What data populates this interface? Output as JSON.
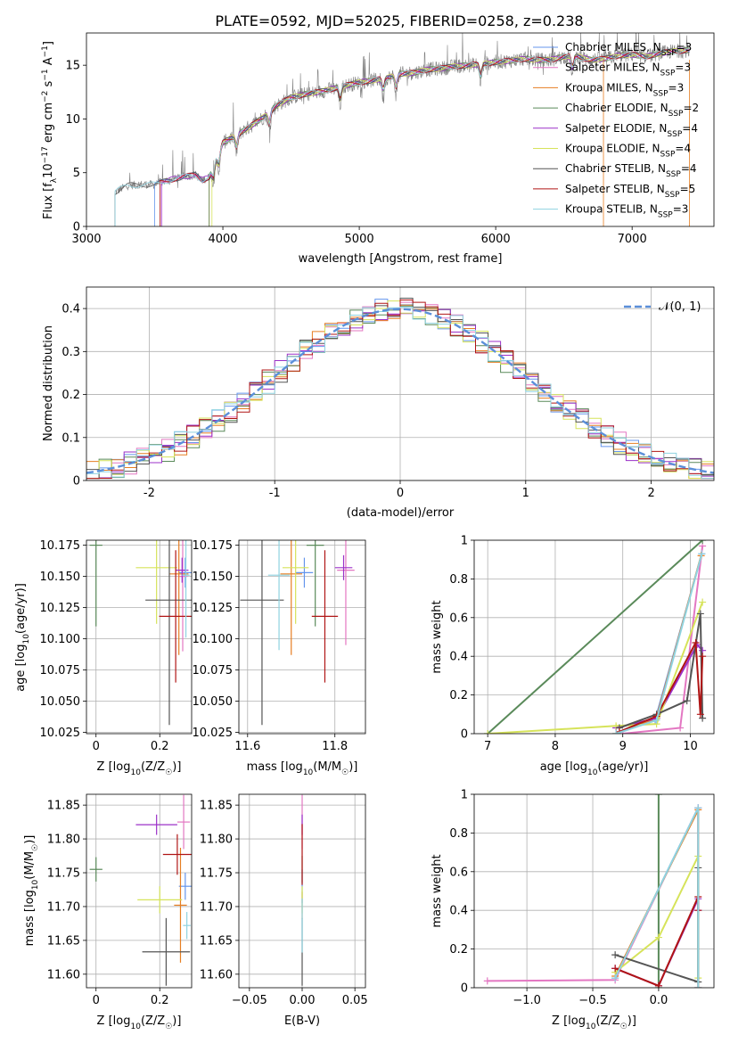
{
  "figure": {
    "title": "PLATE=0592, MJD=52025, FIBERID=0258, z=0.238"
  },
  "series_styles": [
    {
      "name": "Chabrier MILES",
      "nssp": "3",
      "color": "#6495ed"
    },
    {
      "name": "Salpeter MILES",
      "nssp": "3",
      "color": "#e377c2"
    },
    {
      "name": "Kroupa MILES",
      "nssp": "3",
      "color": "#e67e22"
    },
    {
      "name": "Chabrier ELODIE",
      "nssp": "2",
      "color": "#5a8a5a"
    },
    {
      "name": "Salpeter ELODIE",
      "nssp": "4",
      "color": "#9b30c8"
    },
    {
      "name": "Kroupa ELODIE",
      "nssp": "4",
      "color": "#d6e35a"
    },
    {
      "name": "Chabrier STELIB",
      "nssp": "4",
      "color": "#555555"
    },
    {
      "name": "Salpeter STELIB",
      "nssp": "5",
      "color": "#b01515"
    },
    {
      "name": "Kroupa STELIB",
      "nssp": "3",
      "color": "#8fd3e0"
    }
  ],
  "chart_data": [
    {
      "id": "spectrum",
      "type": "line",
      "xlabel": "wavelength [Angstrom, rest frame]",
      "ylabel": "Flux [f",
      "ylabel_sub": "λ",
      "ylabel_rest": "10",
      "ylabel_exp": "−17",
      "ylabel_units": " erg cm",
      "ylabel_units_exp": "−2",
      "ylabel_units2": " s",
      "ylabel_units2_exp": "−1",
      "ylabel_units3": " A",
      "ylabel_units3_exp": "−1",
      "ylabel_end": "]",
      "xlim": [
        3000,
        7600
      ],
      "ylim": [
        0,
        18
      ],
      "xticks": [
        3000,
        4000,
        5000,
        6000,
        7000
      ],
      "yticks": [
        0,
        5,
        10,
        15
      ],
      "grid": false,
      "legend": "top-right",
      "data_color": "#808080",
      "data_start": 3210,
      "data_end": 7420,
      "envelope": {
        "x": [
          3210,
          3300,
          3400,
          3500,
          3600,
          3700,
          3800,
          3850,
          3900,
          3950,
          4000,
          4100,
          4200,
          4300,
          4400,
          4500,
          4600,
          4700,
          4800,
          4900,
          5000,
          5100,
          5200,
          5300,
          5400,
          5500,
          5600,
          5700,
          5800,
          5900,
          6000,
          6100,
          6200,
          6300,
          6400,
          6500,
          6600,
          6700,
          6800,
          6900,
          7000,
          7100,
          7200,
          7300,
          7420
        ],
        "y": [
          3.2,
          3.8,
          3.9,
          3.9,
          4.3,
          4.6,
          4.8,
          4.3,
          4.6,
          6.2,
          7.8,
          8.5,
          9.3,
          10.2,
          11.3,
          12.0,
          12.3,
          12.5,
          12.8,
          13.1,
          13.4,
          13.6,
          13.8,
          14.2,
          14.3,
          14.6,
          14.7,
          14.9,
          15.0,
          15.1,
          15.3,
          15.4,
          15.6,
          15.5,
          15.5,
          15.8,
          15.8,
          15.5,
          15.6,
          15.9,
          16.0,
          15.8,
          16.1,
          16.3,
          16.4
        ]
      },
      "model_starts": [
        3500,
        3550,
        3900,
        3900,
        3550,
        3920,
        3210,
        3540,
        3210
      ],
      "dips": [
        3930,
        3970,
        4100,
        4340,
        4860,
        5175,
        5270,
        5890,
        6563
      ]
    },
    {
      "id": "residual_hist",
      "type": "histogram",
      "xlabel": "(data-model)/error",
      "ylabel": "Normed distribution",
      "xlim": [
        -2.5,
        2.5
      ],
      "ylim": [
        0,
        0.45
      ],
      "xticks": [
        -2,
        -1,
        0,
        1,
        2
      ],
      "yticks": [
        0.0,
        0.1,
        0.2,
        0.3,
        0.4
      ],
      "grid": true,
      "legend": "top-right",
      "gaussian_label_pre": "𝒩",
      "gaussian_label": "(0, 1)",
      "gaussian_color": "#5b8fd9",
      "bin_width": 0.1,
      "bin_start": -2.5
    },
    {
      "id": "age_vs_Z",
      "type": "errorbar",
      "xlabel": "Z [log",
      "xlabel_sub": "10",
      "xlabel_end": "(Z/Z",
      "xlabel_sun": "☉",
      "xlabel_close": ")]",
      "ylabel": "age  [log",
      "ylabel_sub": "10",
      "ylabel_end": "(age/yr)]",
      "xlim": [
        -0.03,
        0.3
      ],
      "ylim": [
        10.024,
        10.179
      ],
      "xticks": [
        0.0,
        0.2
      ],
      "yticks": [
        10.025,
        10.05,
        10.075,
        10.1,
        10.125,
        10.15,
        10.175
      ],
      "ytick_labels": [
        "10.025",
        "10.050",
        "10.075",
        "10.100",
        "10.125",
        "10.150",
        "10.175"
      ],
      "grid": true,
      "points": [
        {
          "x": 0.28,
          "xerr": 0.02,
          "y": 10.153,
          "yerr": 0.012
        },
        {
          "x": 0.272,
          "xerr": 0.015,
          "y": 10.15,
          "yerr": 0.06
        },
        {
          "x": 0.26,
          "xerr": 0.03,
          "y": 10.152,
          "yerr": 0.065
        },
        {
          "x": 0.0,
          "xerr": 0.02,
          "y": 10.175,
          "yerr": 0.065
        },
        {
          "x": 0.27,
          "xerr": 0.02,
          "y": 10.155,
          "yerr": 0.01
        },
        {
          "x": 0.19,
          "xerr": 0.065,
          "y": 10.157,
          "yerr": 0.045
        },
        {
          "x": 0.23,
          "xerr": 0.075,
          "y": 10.131,
          "yerr": 0.1
        },
        {
          "x": 0.25,
          "xerr": 0.052,
          "y": 10.118,
          "yerr": 0.053
        },
        {
          "x": 0.282,
          "xerr": 0.012,
          "y": 10.151,
          "yerr": 0.05
        }
      ]
    },
    {
      "id": "age_vs_mass",
      "type": "errorbar",
      "xlabel": "mass [log",
      "xlabel_sub": "10",
      "xlabel_end": "(M/M",
      "xlabel_sun": "☉",
      "xlabel_close": ")]",
      "xlim": [
        11.58,
        11.87
      ],
      "ylim": [
        10.024,
        10.179
      ],
      "xticks": [
        11.6,
        11.8
      ],
      "yticks": [
        10.025,
        10.05,
        10.075,
        10.1,
        10.125,
        10.15,
        10.175
      ],
      "ytick_labels": [
        "10.025",
        "10.050",
        "10.075",
        "10.100",
        "10.125",
        "10.150",
        "10.175"
      ],
      "grid": true,
      "points": [
        {
          "x": 11.73,
          "xerr": 0.02,
          "y": 10.153,
          "yerr": 0.012
        },
        {
          "x": 11.825,
          "xerr": 0.02,
          "y": 10.155,
          "yerr": 0.06
        },
        {
          "x": 11.7,
          "xerr": 0.025,
          "y": 10.152,
          "yerr": 0.065
        },
        {
          "x": 11.755,
          "xerr": 0.02,
          "y": 10.175,
          "yerr": 0.065
        },
        {
          "x": 11.82,
          "xerr": 0.02,
          "y": 10.157,
          "yerr": 0.01
        },
        {
          "x": 11.71,
          "xerr": 0.03,
          "y": 10.157,
          "yerr": 0.045
        },
        {
          "x": 11.633,
          "xerr": 0.05,
          "y": 10.131,
          "yerr": 0.1
        },
        {
          "x": 11.777,
          "xerr": 0.03,
          "y": 10.118,
          "yerr": 0.053
        },
        {
          "x": 11.672,
          "xerr": 0.025,
          "y": 10.151,
          "yerr": 0.06
        }
      ]
    },
    {
      "id": "mass_weight_vs_age",
      "type": "line",
      "xlabel": "age  [log",
      "xlabel_sub": "10",
      "xlabel_end": "(age/yr)]",
      "ylabel": "mass weight",
      "xlim": [
        6.8,
        10.35
      ],
      "ylim": [
        0,
        1
      ],
      "xticks": [
        7,
        8,
        9,
        10
      ],
      "yticks": [
        0.0,
        0.2,
        0.4,
        0.6,
        0.8,
        1.0
      ],
      "grid": true,
      "series": [
        {
          "x": [
            8.9,
            9.48,
            10.17
          ],
          "y": [
            0.0,
            0.07,
            0.93
          ]
        },
        {
          "x": [
            9.0,
            9.85,
            10.18
          ],
          "y": [
            0.0,
            0.03,
            0.97
          ]
        },
        {
          "x": [
            8.9,
            9.5,
            10.16
          ],
          "y": [
            0.0,
            0.08,
            0.92
          ]
        },
        {
          "x": [
            7.0,
            10.18
          ],
          "y": [
            0.0,
            1.0
          ]
        },
        {
          "x": [
            8.9,
            9.5,
            10.1,
            10.18
          ],
          "y": [
            0.03,
            0.08,
            0.46,
            0.43
          ]
        },
        {
          "x": [
            7.0,
            8.9,
            9.5,
            10.18
          ],
          "y": [
            0.0,
            0.04,
            0.05,
            0.68
          ]
        },
        {
          "x": [
            8.95,
            9.5,
            9.95,
            10.15,
            10.18
          ],
          "y": [
            0.03,
            0.1,
            0.17,
            0.62,
            0.08
          ]
        },
        {
          "x": [
            8.95,
            9.5,
            10.08,
            10.15,
            10.18
          ],
          "y": [
            0.01,
            0.09,
            0.47,
            0.1,
            0.4
          ]
        },
        {
          "x": [
            8.9,
            9.5,
            10.17
          ],
          "y": [
            0.0,
            0.07,
            0.93
          ]
        }
      ]
    },
    {
      "id": "mass_vs_Z",
      "type": "errorbar",
      "xlabel": "Z [log",
      "xlabel_sub": "10",
      "xlabel_end": "(Z/Z",
      "xlabel_sun": "☉",
      "xlabel_close": ")]",
      "ylabel": "mass [log",
      "ylabel_sub": "10",
      "ylabel_end": "(M/M",
      "ylabel_sun": "☉",
      "ylabel_close": ")]",
      "xlim": [
        -0.03,
        0.3
      ],
      "ylim": [
        11.58,
        11.866
      ],
      "xticks": [
        0.0,
        0.2
      ],
      "yticks": [
        11.6,
        11.65,
        11.7,
        11.75,
        11.8,
        11.85
      ],
      "ytick_labels": [
        "11.60",
        "11.65",
        "11.70",
        "11.75",
        "11.80",
        "11.85"
      ],
      "grid": true,
      "points": [
        {
          "x": 0.28,
          "xerr": 0.02,
          "y": 11.73,
          "yerr": 0.02
        },
        {
          "x": 0.275,
          "xerr": 0.02,
          "y": 11.825,
          "yerr": 0.04
        },
        {
          "x": 0.265,
          "xerr": 0.02,
          "y": 11.702,
          "yerr": 0.085
        },
        {
          "x": 0.0,
          "xerr": 0.02,
          "y": 11.755,
          "yerr": 0.018
        },
        {
          "x": 0.19,
          "xerr": 0.065,
          "y": 11.821,
          "yerr": 0.015
        },
        {
          "x": 0.2,
          "xerr": 0.07,
          "y": 11.71,
          "yerr": 0.02
        },
        {
          "x": 0.22,
          "xerr": 0.075,
          "y": 11.633,
          "yerr": 0.05
        },
        {
          "x": 0.255,
          "xerr": 0.045,
          "y": 11.777,
          "yerr": 0.03
        },
        {
          "x": 0.285,
          "xerr": 0.012,
          "y": 11.672,
          "yerr": 0.02
        }
      ]
    },
    {
      "id": "mass_vs_ebv",
      "type": "errorbar",
      "xlabel": "E(B-V)",
      "xlim": [
        -0.06,
        0.06
      ],
      "ylim": [
        11.58,
        11.866
      ],
      "xticks": [
        -0.05,
        0.0,
        0.05
      ],
      "xtick_labels": [
        "−0.05",
        "0.00",
        "0.05"
      ],
      "yticks": [
        11.6,
        11.65,
        11.7,
        11.75,
        11.8,
        11.85
      ],
      "ytick_labels": [
        "11.60",
        "11.65",
        "11.70",
        "11.75",
        "11.80",
        "11.85"
      ],
      "grid": true,
      "points": [
        {
          "x": 0.0,
          "xerr": 0.0,
          "y": 11.73,
          "yerr": 0.025
        },
        {
          "x": 0.0,
          "xerr": 0.0,
          "y": 11.825,
          "yerr": 0.04
        },
        {
          "x": 0.0,
          "xerr": 0.0,
          "y": 11.702,
          "yerr": 0.02
        },
        {
          "x": 0.0,
          "xerr": 0.0,
          "y": 11.755,
          "yerr": 0.02
        },
        {
          "x": 0.0,
          "xerr": 0.0,
          "y": 11.821,
          "yerr": 0.015
        },
        {
          "x": 0.0,
          "xerr": 0.0,
          "y": 11.71,
          "yerr": 0.02
        },
        {
          "x": 0.0,
          "xerr": 0.0,
          "y": 11.633,
          "yerr": 0.05
        },
        {
          "x": 0.0,
          "xerr": 0.0,
          "y": 11.777,
          "yerr": 0.045
        },
        {
          "x": 0.0,
          "xerr": 0.0,
          "y": 11.672,
          "yerr": 0.04
        }
      ]
    },
    {
      "id": "mass_weight_vs_Z",
      "type": "line",
      "xlabel": "Z [log",
      "xlabel_sub": "10",
      "xlabel_end": "(Z/Z",
      "xlabel_sun": "☉",
      "xlabel_close": ")]",
      "ylabel": "mass weight",
      "xlim": [
        -1.4,
        0.42
      ],
      "ylim": [
        0,
        1
      ],
      "xticks": [
        -1.0,
        -0.5,
        0.0
      ],
      "xtick_labels": [
        "−1.0",
        "−0.5",
        "0.0"
      ],
      "yticks": [
        0.0,
        0.2,
        0.4,
        0.6,
        0.8,
        1.0
      ],
      "grid": true,
      "series": [
        {
          "x": [
            -0.33,
            0.3,
            0.3
          ],
          "y": [
            0.05,
            0.93,
            0.0
          ]
        },
        {
          "x": [
            -1.3,
            -0.33,
            0.3,
            0.3
          ],
          "y": [
            0.035,
            0.04,
            0.93,
            0.0
          ]
        },
        {
          "x": [
            -0.33,
            0.3,
            0.3
          ],
          "y": [
            0.06,
            0.92,
            0.0
          ]
        },
        {
          "x": [
            0.0,
            0.0
          ],
          "y": [
            0.0,
            1.0
          ]
        },
        {
          "x": [
            -0.33,
            0.0,
            0.3,
            0.3
          ],
          "y": [
            0.1,
            0.01,
            0.46,
            0.4
          ]
        },
        {
          "x": [
            -0.33,
            0.0,
            0.3,
            0.3
          ],
          "y": [
            0.08,
            0.26,
            0.68,
            0.05
          ]
        },
        {
          "x": [
            -0.33,
            0.3,
            0.3
          ],
          "y": [
            0.17,
            0.03,
            0.62
          ]
        },
        {
          "x": [
            -0.33,
            0.0,
            0.3,
            0.3
          ],
          "y": [
            0.1,
            0.01,
            0.47,
            0.4
          ]
        },
        {
          "x": [
            -0.33,
            0.3,
            0.3
          ],
          "y": [
            0.05,
            0.93,
            0.0
          ]
        }
      ]
    }
  ]
}
